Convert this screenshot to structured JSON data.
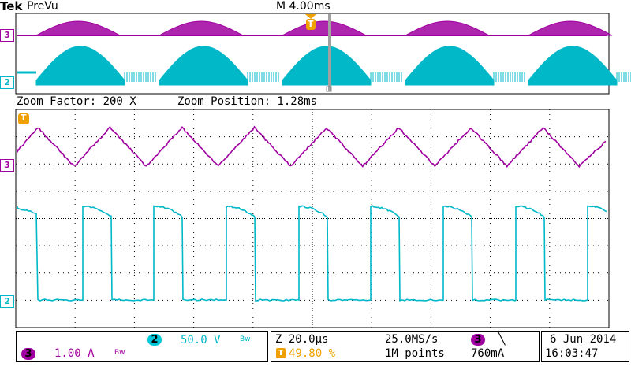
{
  "header": {
    "brand": "Tek",
    "mode": "PreVu",
    "timebase": "M 4.00ms"
  },
  "markers": {
    "trigger": "T",
    "ch3": "3",
    "ch2": "2"
  },
  "zoom": {
    "factor_label": "Zoom Factor: 200 X",
    "position_label": "Zoom Position: 1.28ms"
  },
  "status": {
    "ch2_num": "2",
    "ch2_scale": "50.0 V",
    "ch2_bw": "Bw",
    "ch3_num": "3",
    "ch3_scale": "1.00 A",
    "ch3_bw": "Bw",
    "zoom_scale": "Z 20.0µs",
    "trigger_pos": "49.80 %",
    "sample_rate": "25.0MS/s",
    "record_length": "1M points",
    "trig_source": "3",
    "trig_slope": "╲",
    "trig_level": "760mA",
    "date": "6 Jun  2014",
    "time": "16:03:47"
  },
  "colors": {
    "ch3": "#a000a0",
    "ch2": "#00b8c8",
    "trigger": "#f0a000",
    "grid": "#000000"
  }
}
